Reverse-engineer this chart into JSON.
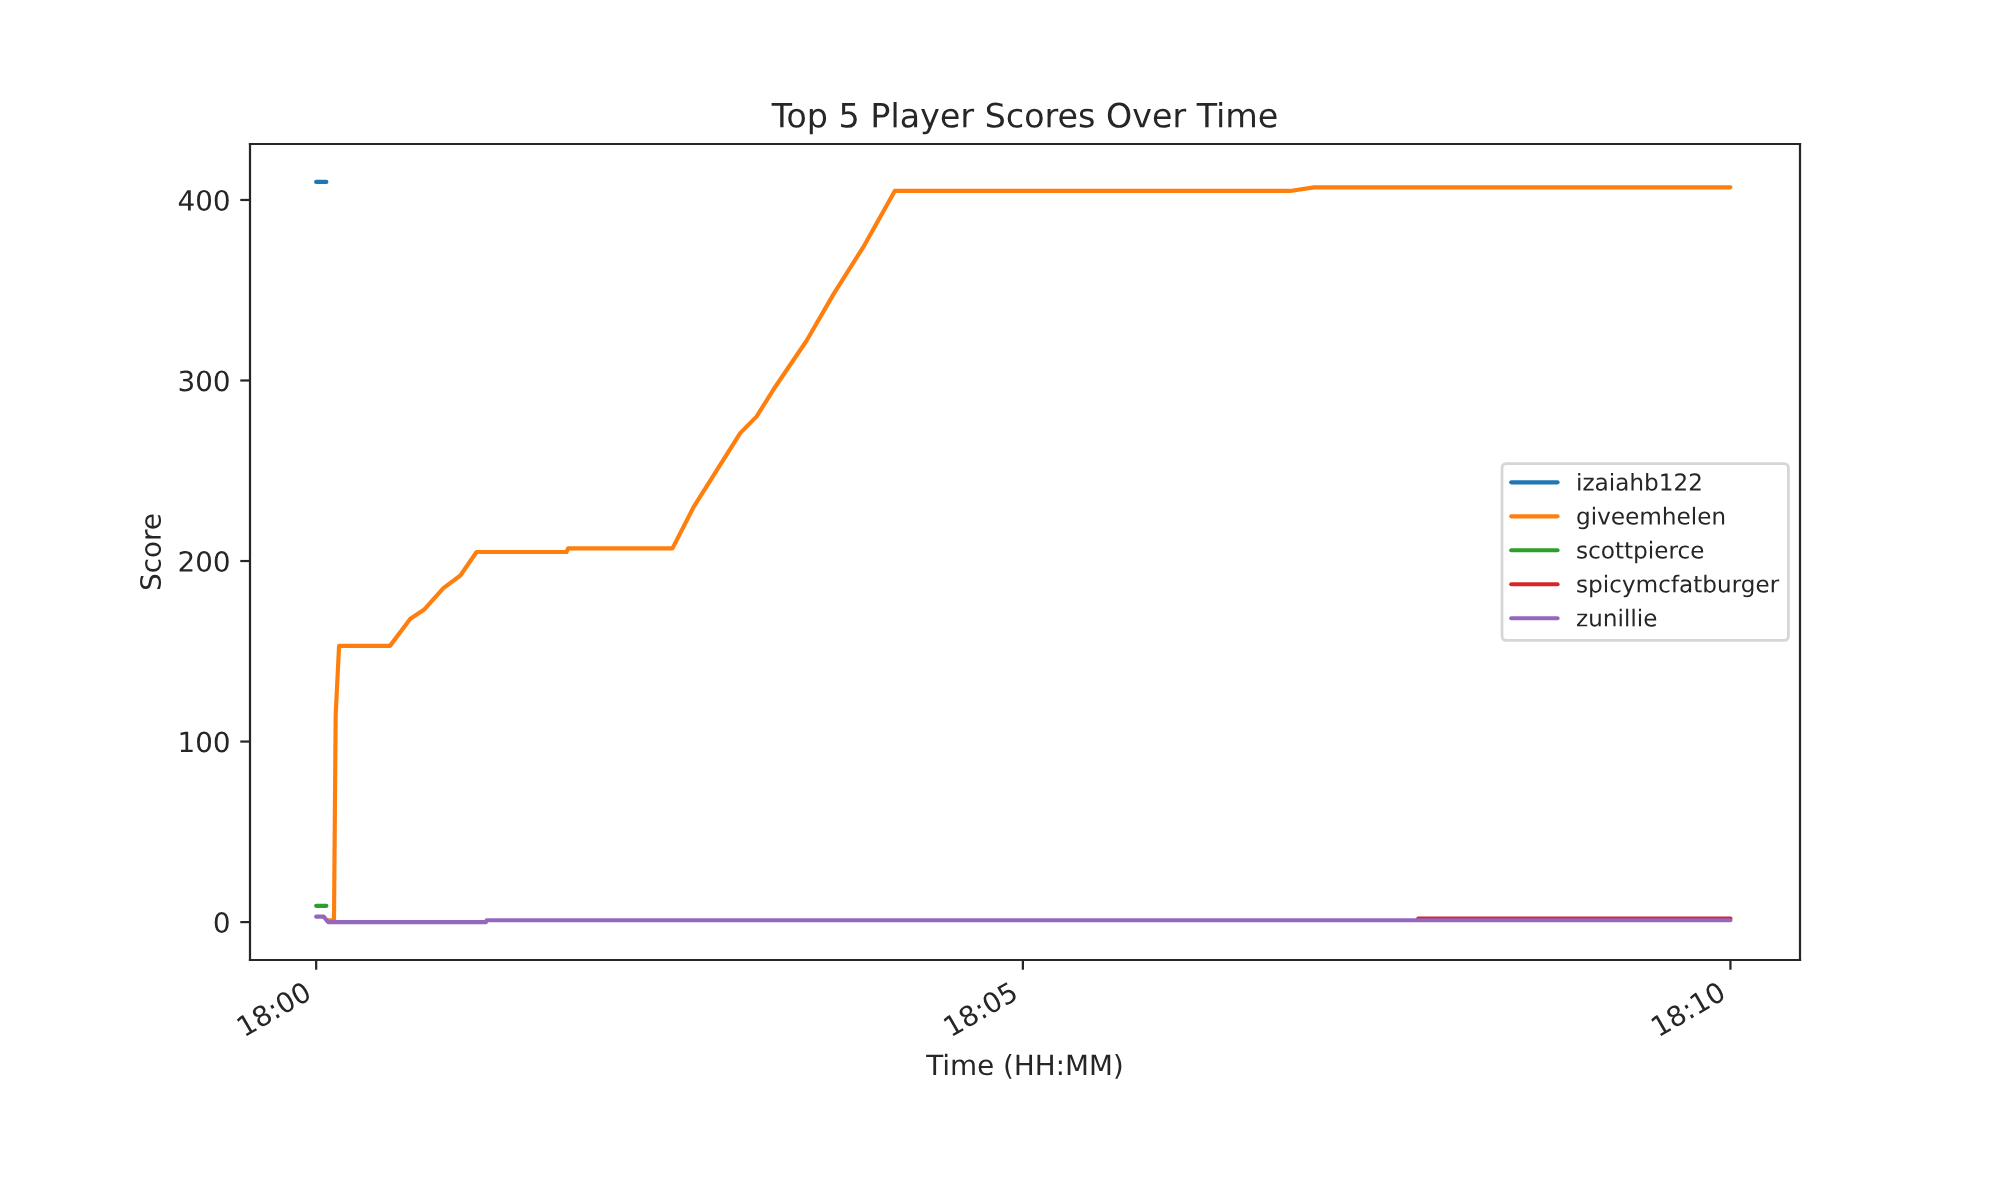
{
  "chart_data": {
    "type": "line",
    "title": "Top 5 Player Scores Over Time",
    "xlabel": "Time (HH:MM)",
    "ylabel": "Score",
    "xlim": [
      17.9922,
      18.1749
    ],
    "xticks": [
      {
        "value": 18.0,
        "label": "18:00"
      },
      {
        "value": 18.0833,
        "label": "18:05"
      },
      {
        "value": 18.1667,
        "label": "18:10"
      }
    ],
    "ylim": [
      -21,
      431
    ],
    "yticks": [
      0,
      100,
      200,
      300,
      400
    ],
    "grid": false,
    "legend": "center right",
    "line_style": "solid",
    "series": [
      {
        "name": "izaiahb122",
        "color": "#1f77b4",
        "x": [
          18.0,
          18.0012
        ],
        "values": [
          410,
          410
        ]
      },
      {
        "name": "giveemhelen",
        "color": "#ff7f0e",
        "x": [
          18.0014,
          18.0021,
          18.0023,
          18.0027,
          18.0087,
          18.0111,
          18.0127,
          18.015,
          18.017,
          18.0189,
          18.0295,
          18.0297,
          18.042,
          18.0445,
          18.05,
          18.0519,
          18.0539,
          18.0578,
          18.061,
          18.0645,
          18.0682,
          18.1148,
          18.1176,
          18.1667
        ],
        "values": [
          1,
          1,
          115,
          153,
          153,
          168,
          173,
          185,
          192,
          205,
          205,
          207,
          207,
          230,
          271,
          280,
          295,
          322,
          348,
          374,
          405,
          405,
          407,
          407
        ]
      },
      {
        "name": "scottpierce",
        "color": "#2ca02c",
        "x": [
          18.0,
          18.0012
        ],
        "values": [
          9,
          9
        ]
      },
      {
        "name": "spicymcfatburger",
        "color": "#d62728",
        "x": [
          18.1299,
          18.1667
        ],
        "values": [
          2,
          2
        ]
      },
      {
        "name": "zunillie",
        "color": "#9467bd",
        "x": [
          18.0,
          18.0009,
          18.0014,
          18.02,
          18.0201,
          18.1667
        ],
        "values": [
          3,
          3,
          0,
          0,
          1,
          1
        ]
      }
    ]
  }
}
